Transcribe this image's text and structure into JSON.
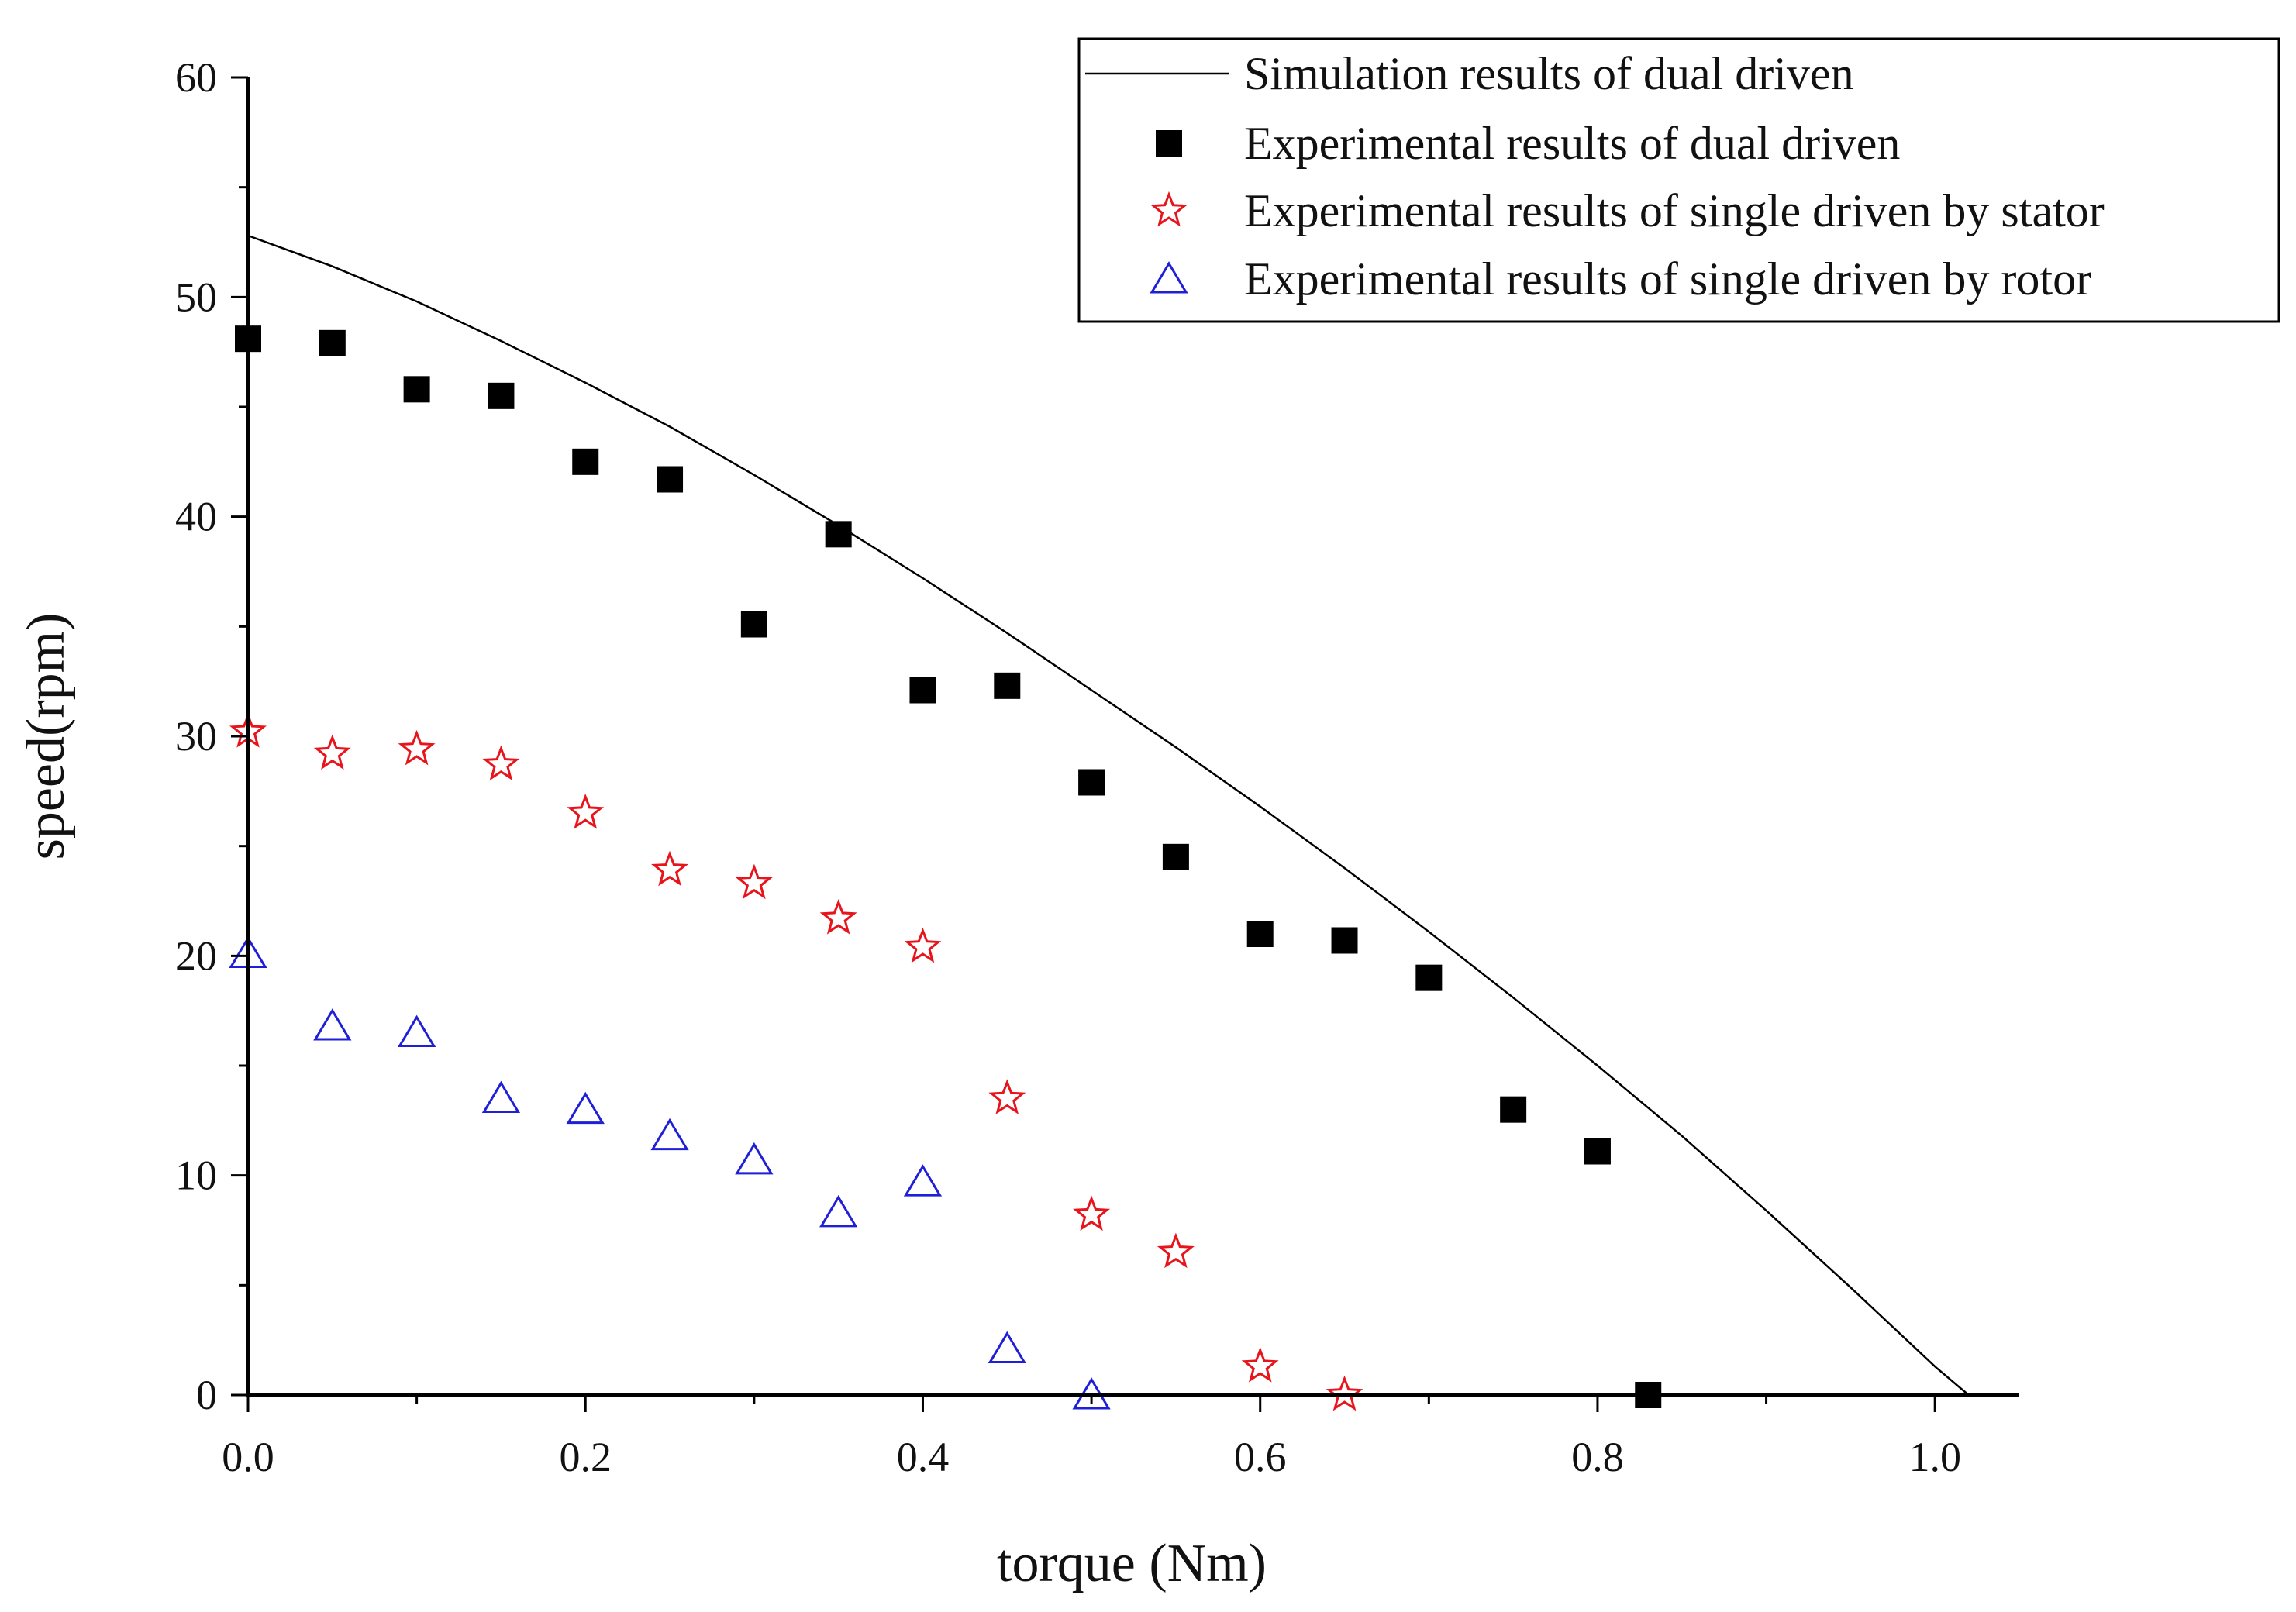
{
  "chart_data": {
    "type": "scatter",
    "xlabel": "torque (Nm)",
    "ylabel": "speed(rpm)",
    "xlim": [
      0.0,
      1.05
    ],
    "ylim": [
      0,
      60
    ],
    "x_ticks": [
      0.0,
      0.2,
      0.4,
      0.6,
      0.8,
      1.0
    ],
    "x_tick_labels": [
      "0.0",
      "0.2",
      "0.4",
      "0.6",
      "0.8",
      "1.0"
    ],
    "y_ticks": [
      0,
      10,
      20,
      30,
      40,
      50,
      60
    ],
    "y_tick_labels": [
      "0",
      "10",
      "20",
      "30",
      "40",
      "50",
      "60"
    ],
    "grid": false,
    "legend_position": "top-right",
    "series": [
      {
        "name": "Simulation results of dual driven",
        "kind": "line",
        "color": "#000000",
        "x": [
          0.0,
          0.05,
          0.1,
          0.15,
          0.2,
          0.25,
          0.3,
          0.35,
          0.4,
          0.45,
          0.5,
          0.55,
          0.6,
          0.65,
          0.7,
          0.75,
          0.8,
          0.85,
          0.9,
          0.95,
          1.0,
          1.02
        ],
        "y": [
          52.8,
          51.4,
          49.8,
          48.0,
          46.1,
          44.1,
          41.9,
          39.6,
          37.2,
          34.7,
          32.1,
          29.5,
          26.8,
          24.0,
          21.1,
          18.1,
          15.0,
          11.8,
          8.4,
          4.9,
          1.3,
          0.0
        ]
      },
      {
        "name": "Experimental results of dual driven",
        "kind": "marker",
        "marker": "square",
        "color": "#000000",
        "x": [
          0.0,
          0.05,
          0.1,
          0.15,
          0.2,
          0.25,
          0.3,
          0.35,
          0.4,
          0.45,
          0.5,
          0.55,
          0.6,
          0.65,
          0.7,
          0.75,
          0.8,
          0.83
        ],
        "y": [
          48.1,
          47.9,
          45.8,
          45.5,
          42.5,
          41.7,
          35.1,
          39.2,
          32.1,
          32.3,
          27.9,
          24.5,
          21.0,
          20.7,
          19.0,
          13.0,
          11.1,
          0.0
        ]
      },
      {
        "name": "Experimental results of single driven by stator",
        "kind": "marker",
        "marker": "star",
        "color": "#e8141c",
        "x": [
          0.0,
          0.05,
          0.1,
          0.15,
          0.2,
          0.25,
          0.3,
          0.35,
          0.4,
          0.45,
          0.5,
          0.55,
          0.6,
          0.65
        ],
        "y": [
          30.2,
          29.2,
          29.4,
          28.7,
          26.5,
          23.9,
          23.3,
          21.7,
          20.4,
          13.5,
          8.2,
          6.5,
          1.3,
          0.0
        ]
      },
      {
        "name": "Experimental results of single driven by rotor",
        "kind": "marker",
        "marker": "triangle",
        "color": "#1f1fd8",
        "x": [
          0.0,
          0.05,
          0.1,
          0.15,
          0.2,
          0.25,
          0.3,
          0.35,
          0.4,
          0.45,
          0.5
        ],
        "y": [
          20.1,
          16.8,
          16.5,
          13.5,
          13.0,
          11.8,
          10.7,
          8.3,
          9.7,
          2.1,
          0.0
        ]
      }
    ]
  }
}
